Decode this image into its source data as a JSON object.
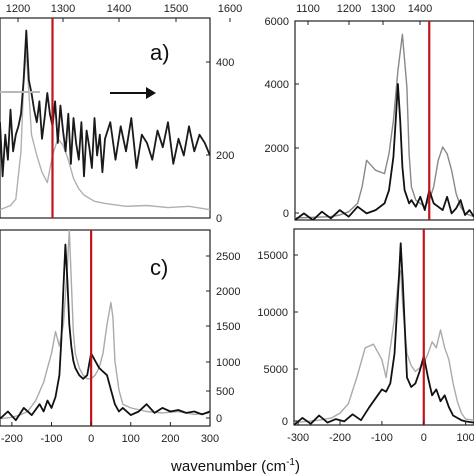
{
  "x_axis_label": "wavenumber (cm",
  "x_axis_label_sup": "-1",
  "x_axis_label_end": ")",
  "chart_data": [
    {
      "type": "line",
      "panel_label": "a)",
      "top_axis_ticks": [
        "1200",
        "1300",
        "1400",
        "1500",
        "1600"
      ],
      "right_axis_ticks": [
        "0",
        "200",
        "400"
      ],
      "bottom_axis_ticks": [],
      "xlim": [
        -100,
        300
      ],
      "ylim": [
        0,
        480
      ],
      "red_line_x": 0,
      "arrow": "right",
      "series": [
        {
          "color": "#b0b0b0",
          "x": [
            -100,
            -90,
            -80,
            -70,
            -60,
            -55,
            -50,
            -45,
            -40,
            -30,
            -20,
            -10,
            0,
            10,
            20,
            30,
            40,
            50,
            60,
            80,
            100,
            140,
            180,
            220,
            260,
            300
          ],
          "y": [
            20,
            25,
            30,
            45,
            160,
            320,
            400,
            300,
            200,
            150,
            110,
            85,
            150,
            190,
            175,
            140,
            95,
            70,
            55,
            40,
            35,
            28,
            30,
            25,
            28,
            20
          ]
        },
        {
          "color": "#1a1a1a",
          "x": [
            -100,
            -95,
            -90,
            -85,
            -80,
            -75,
            -70,
            -65,
            -60,
            -55,
            -50,
            -45,
            -40,
            -35,
            -30,
            -25,
            -20,
            -15,
            -10,
            -5,
            0,
            5,
            10,
            15,
            20,
            25,
            30,
            35,
            40,
            45,
            50,
            55,
            60,
            65,
            70,
            75,
            80,
            85,
            90,
            95,
            100,
            110,
            120,
            130,
            140,
            150,
            160,
            170,
            180,
            190,
            200,
            210,
            220,
            230,
            240,
            250,
            260,
            270,
            280,
            290,
            300
          ],
          "y": [
            230,
            100,
            200,
            140,
            260,
            160,
            200,
            220,
            250,
            330,
            450,
            330,
            300,
            260,
            230,
            280,
            190,
            240,
            300,
            250,
            220,
            280,
            180,
            270,
            210,
            160,
            250,
            130,
            240,
            180,
            140,
            230,
            100,
            210,
            170,
            120,
            240,
            150,
            200,
            110,
            190,
            230,
            140,
            220,
            160,
            240,
            120,
            200,
            180,
            140,
            210,
            170,
            230,
            130,
            190,
            150,
            220,
            160,
            200,
            180,
            150
          ]
        }
      ]
    },
    {
      "type": "line",
      "panel_label": "",
      "top_axis_ticks": [
        "1100",
        "1200",
        "1300",
        "1400"
      ],
      "left_axis_ticks": [
        "0",
        "2000",
        "4000",
        "6000"
      ],
      "bottom_axis_ticks": [],
      "xlim": [
        -300,
        100
      ],
      "ylim": [
        0,
        6000
      ],
      "red_line_x": 0,
      "series": [
        {
          "color": "#888888",
          "x": [
            -300,
            -260,
            -220,
            -200,
            -180,
            -160,
            -150,
            -140,
            -120,
            -100,
            -90,
            -80,
            -70,
            -60,
            -50,
            -45,
            -40,
            -30,
            -20,
            -10,
            0,
            10,
            20,
            30,
            40,
            50,
            60,
            70,
            80,
            90,
            100
          ],
          "y": [
            60,
            80,
            100,
            150,
            250,
            500,
            1000,
            1800,
            1500,
            1400,
            2000,
            3000,
            4500,
            5600,
            4000,
            2000,
            1000,
            600,
            500,
            400,
            600,
            1000,
            1800,
            2200,
            2000,
            1500,
            800,
            400,
            200,
            150,
            100
          ]
        },
        {
          "color": "#111111",
          "x": [
            -300,
            -280,
            -260,
            -240,
            -220,
            -200,
            -180,
            -160,
            -140,
            -120,
            -100,
            -90,
            -80,
            -75,
            -70,
            -65,
            -60,
            -55,
            -50,
            -45,
            -40,
            -30,
            -20,
            -10,
            0,
            10,
            20,
            30,
            40,
            50,
            60,
            70,
            80,
            90,
            100
          ],
          "y": [
            0,
            200,
            0,
            250,
            50,
            300,
            100,
            400,
            200,
            300,
            500,
            900,
            1900,
            3000,
            4100,
            3000,
            1600,
            900,
            700,
            500,
            600,
            400,
            700,
            300,
            900,
            500,
            400,
            300,
            700,
            200,
            350,
            600,
            150,
            300,
            100
          ]
        }
      ]
    },
    {
      "type": "line",
      "panel_label": "c)",
      "right_axis_ticks": [
        "0",
        "500",
        "1000",
        "1500",
        "2000",
        "2500"
      ],
      "bottom_axis_ticks": [
        "-200",
        "-100",
        "0",
        "100",
        "200",
        "300"
      ],
      "bottom_tick_values": [
        -200,
        -100,
        0,
        100,
        200,
        300
      ],
      "xlim": [
        -230,
        300
      ],
      "ylim": [
        0,
        2700
      ],
      "red_line_x": 0,
      "series": [
        {
          "color": "#aaaaaa",
          "x": [
            -230,
            -200,
            -180,
            -160,
            -140,
            -120,
            -110,
            -100,
            -90,
            -80,
            -70,
            -60,
            -55,
            -50,
            -45,
            -40,
            -30,
            -20,
            -10,
            0,
            10,
            20,
            30,
            40,
            50,
            55,
            60,
            70,
            80,
            100,
            140,
            180,
            220,
            260,
            300
          ],
          "y": [
            100,
            120,
            150,
            200,
            350,
            600,
            800,
            1000,
            1300,
            1100,
            1400,
            2200,
            2700,
            2000,
            1300,
            1000,
            800,
            700,
            650,
            650,
            700,
            800,
            1000,
            1400,
            1700,
            1500,
            900,
            500,
            300,
            250,
            200,
            180,
            200,
            160,
            180
          ]
        },
        {
          "color": "#111111",
          "x": [
            -230,
            -210,
            -190,
            -170,
            -150,
            -130,
            -120,
            -110,
            -100,
            -90,
            -80,
            -75,
            -70,
            -65,
            -60,
            -55,
            -50,
            -45,
            -40,
            -30,
            -20,
            -10,
            0,
            10,
            20,
            30,
            40,
            50,
            60,
            70,
            80,
            100,
            120,
            140,
            160,
            180,
            200,
            220,
            240,
            260,
            280,
            300
          ],
          "y": [
            100,
            200,
            80,
            250,
            150,
            300,
            200,
            350,
            250,
            400,
            700,
            1200,
            1900,
            2500,
            2000,
            1400,
            1100,
            900,
            800,
            700,
            650,
            700,
            1000,
            900,
            800,
            750,
            700,
            500,
            300,
            200,
            250,
            150,
            200,
            300,
            180,
            250,
            200,
            220,
            180,
            200,
            160,
            200
          ]
        }
      ]
    },
    {
      "type": "line",
      "panel_label": "",
      "left_axis_ticks": [
        "0",
        "5000",
        "10000",
        "15000"
      ],
      "bottom_axis_ticks": [
        "-300",
        "-200",
        "-100",
        "0",
        "100"
      ],
      "bottom_tick_values": [
        -300,
        -200,
        -100,
        0,
        100
      ],
      "xlim": [
        -310,
        120
      ],
      "ylim": [
        0,
        16500
      ],
      "red_line_x": 0,
      "series": [
        {
          "color": "#aaaaaa",
          "x": [
            -310,
            -280,
            -250,
            -220,
            -200,
            -180,
            -160,
            -140,
            -120,
            -100,
            -90,
            -80,
            -70,
            -60,
            -55,
            -50,
            -40,
            -30,
            -20,
            -10,
            0,
            10,
            20,
            30,
            40,
            50,
            60,
            70,
            80,
            90,
            100,
            120
          ],
          "y": [
            200,
            300,
            400,
            600,
            1000,
            1800,
            4000,
            6500,
            6800,
            5500,
            4000,
            6500,
            9000,
            12500,
            13000,
            10000,
            6000,
            5000,
            4500,
            4800,
            5200,
            6000,
            7000,
            6500,
            8000,
            6500,
            5500,
            3500,
            2000,
            1000,
            500,
            400
          ]
        },
        {
          "color": "#111111",
          "x": [
            -310,
            -290,
            -270,
            -250,
            -230,
            -210,
            -190,
            -170,
            -150,
            -130,
            -110,
            -100,
            -90,
            -80,
            -70,
            -65,
            -60,
            -55,
            -50,
            -45,
            -40,
            -30,
            -20,
            -10,
            0,
            10,
            20,
            30,
            40,
            50,
            60,
            70,
            80,
            90,
            100,
            120
          ],
          "y": [
            0,
            600,
            100,
            800,
            200,
            500,
            300,
            900,
            400,
            1500,
            2500,
            3000,
            2800,
            3500,
            6000,
            9000,
            12000,
            15300,
            12000,
            8000,
            4000,
            3200,
            3500,
            4500,
            5800,
            4000,
            2500,
            3000,
            2000,
            2500,
            1500,
            800,
            600,
            400,
            300,
            200
          ]
        }
      ]
    }
  ]
}
